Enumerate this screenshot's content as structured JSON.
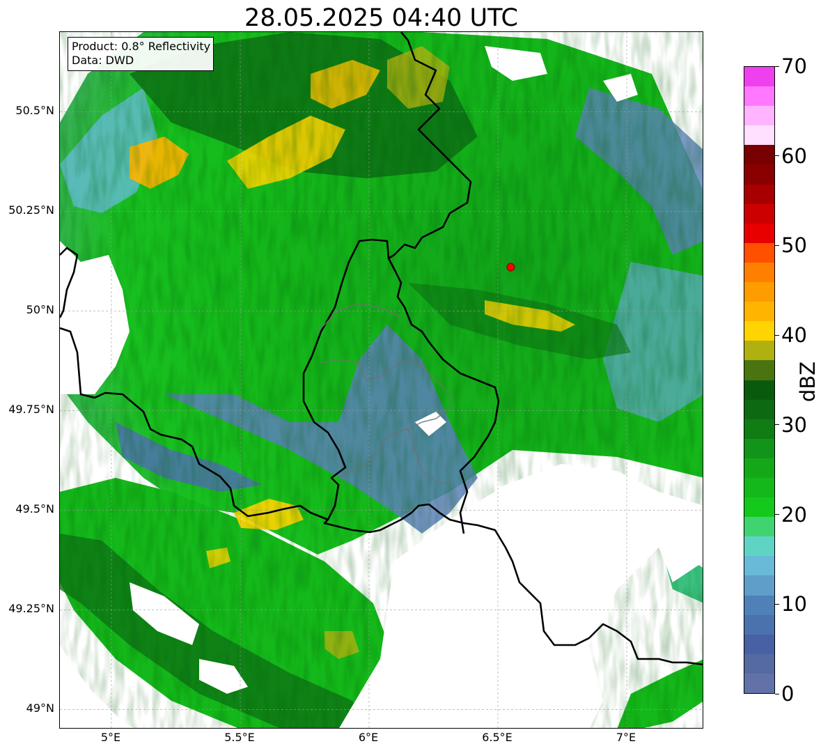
{
  "title": "28.05.2025 04:40 UTC",
  "info_box": {
    "product": "Product: 0.8° Reflectivity",
    "data": "Data: DWD"
  },
  "map": {
    "lon_range": [
      4.8,
      7.3
    ],
    "lat_range": [
      48.95,
      50.7
    ],
    "lat_ticks": [
      {
        "value": 49.0,
        "label": "49°N"
      },
      {
        "value": 49.25,
        "label": "49.25°N"
      },
      {
        "value": 49.5,
        "label": "49.5°N"
      },
      {
        "value": 49.75,
        "label": "49.75°N"
      },
      {
        "value": 50.0,
        "label": "50°N"
      },
      {
        "value": 50.25,
        "label": "50.25°N"
      },
      {
        "value": 50.5,
        "label": "50.5°N"
      }
    ],
    "lon_ticks": [
      {
        "value": 5.0,
        "label": "5°E"
      },
      {
        "value": 5.5,
        "label": "5.5°E"
      },
      {
        "value": 6.0,
        "label": "6°E"
      },
      {
        "value": 6.5,
        "label": "6.5°E"
      },
      {
        "value": 7.0,
        "label": "7°E"
      }
    ],
    "gridlines": true,
    "radar_site": {
      "lon": 6.55,
      "lat": 50.11,
      "color": "#ff0000"
    }
  },
  "colorbar": {
    "label": "dBZ",
    "min": 0,
    "max": 70,
    "ticks": [
      {
        "value": 0,
        "label": "0"
      },
      {
        "value": 10,
        "label": "10"
      },
      {
        "value": 20,
        "label": "20"
      },
      {
        "value": 30,
        "label": "30"
      },
      {
        "value": 40,
        "label": "40"
      },
      {
        "value": 50,
        "label": "50"
      },
      {
        "value": 60,
        "label": "60"
      },
      {
        "value": 70,
        "label": "70"
      }
    ],
    "colors": [
      "#6272a8",
      "#546aa0",
      "#4860a4",
      "#4a72ac",
      "#4f80b8",
      "#5f9ec8",
      "#68bad8",
      "#60d4c4",
      "#40d470",
      "#14c81c",
      "#14b81a",
      "#14a818",
      "#12941a",
      "#107c14",
      "#0e6a12",
      "#0a5a0e",
      "#4a7410",
      "#b0b010",
      "#ffd400",
      "#ffb400",
      "#ff9c00",
      "#ff8000",
      "#ff5000",
      "#e80000",
      "#cc0000",
      "#a80000",
      "#8a0000",
      "#780000",
      "#ffe0ff",
      "#ffb4ff",
      "#ff78ff",
      "#ee40ee"
    ]
  }
}
